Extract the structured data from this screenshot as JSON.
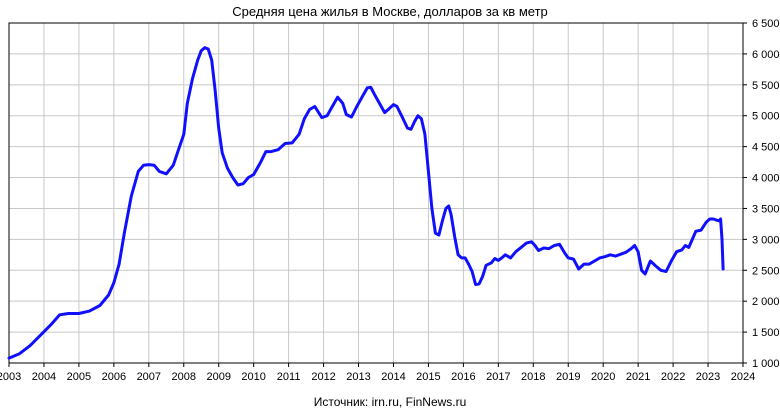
{
  "chart_data": {
    "type": "line",
    "title": "Средняя цена жилья в Москве, долларов за кв метр",
    "source": "Источник: irn.ru, FinNews.ru",
    "xlabel": "",
    "ylabel": "",
    "xlim": [
      2003,
      2024
    ],
    "ylim": [
      1000,
      6500
    ],
    "x_ticks": [
      "2003",
      "2004",
      "2005",
      "2006",
      "2007",
      "2008",
      "2009",
      "2010",
      "2011",
      "2012",
      "2013",
      "2014",
      "2015",
      "2016",
      "2017",
      "2018",
      "2019",
      "2020",
      "2021",
      "2022",
      "2023",
      "2024"
    ],
    "y_ticks": [
      "1 000",
      "1 500",
      "2 000",
      "2 500",
      "3 000",
      "3 500",
      "4 000",
      "4 500",
      "5 000",
      "5 500",
      "6 000",
      "6 500"
    ],
    "grid": true,
    "series_color": "#1010ff",
    "series": [
      {
        "name": "",
        "points": [
          [
            2003.0,
            1080
          ],
          [
            2003.3,
            1150
          ],
          [
            2003.6,
            1280
          ],
          [
            2003.9,
            1450
          ],
          [
            2004.2,
            1620
          ],
          [
            2004.45,
            1780
          ],
          [
            2004.7,
            1800
          ],
          [
            2005.0,
            1800
          ],
          [
            2005.3,
            1840
          ],
          [
            2005.6,
            1930
          ],
          [
            2005.85,
            2100
          ],
          [
            2006.0,
            2300
          ],
          [
            2006.15,
            2600
          ],
          [
            2006.3,
            3100
          ],
          [
            2006.5,
            3700
          ],
          [
            2006.7,
            4100
          ],
          [
            2006.85,
            4200
          ],
          [
            2007.0,
            4210
          ],
          [
            2007.15,
            4200
          ],
          [
            2007.3,
            4100
          ],
          [
            2007.5,
            4060
          ],
          [
            2007.7,
            4200
          ],
          [
            2007.85,
            4450
          ],
          [
            2008.0,
            4700
          ],
          [
            2008.1,
            5200
          ],
          [
            2008.25,
            5600
          ],
          [
            2008.4,
            5900
          ],
          [
            2008.5,
            6050
          ],
          [
            2008.6,
            6100
          ],
          [
            2008.7,
            6080
          ],
          [
            2008.8,
            5900
          ],
          [
            2008.9,
            5400
          ],
          [
            2009.0,
            4800
          ],
          [
            2009.1,
            4400
          ],
          [
            2009.25,
            4150
          ],
          [
            2009.4,
            4000
          ],
          [
            2009.55,
            3880
          ],
          [
            2009.7,
            3900
          ],
          [
            2009.85,
            4000
          ],
          [
            2010.0,
            4050
          ],
          [
            2010.2,
            4250
          ],
          [
            2010.35,
            4420
          ],
          [
            2010.5,
            4420
          ],
          [
            2010.7,
            4450
          ],
          [
            2010.9,
            4550
          ],
          [
            2011.1,
            4560
          ],
          [
            2011.3,
            4700
          ],
          [
            2011.45,
            4950
          ],
          [
            2011.6,
            5100
          ],
          [
            2011.75,
            5150
          ],
          [
            2011.95,
            4970
          ],
          [
            2012.1,
            5000
          ],
          [
            2012.25,
            5150
          ],
          [
            2012.4,
            5300
          ],
          [
            2012.55,
            5200
          ],
          [
            2012.65,
            5020
          ],
          [
            2012.8,
            4980
          ],
          [
            2012.95,
            5150
          ],
          [
            2013.1,
            5300
          ],
          [
            2013.25,
            5450
          ],
          [
            2013.35,
            5460
          ],
          [
            2013.45,
            5350
          ],
          [
            2013.6,
            5200
          ],
          [
            2013.75,
            5050
          ],
          [
            2013.85,
            5100
          ],
          [
            2014.0,
            5180
          ],
          [
            2014.1,
            5150
          ],
          [
            2014.25,
            4980
          ],
          [
            2014.4,
            4800
          ],
          [
            2014.5,
            4780
          ],
          [
            2014.6,
            4900
          ],
          [
            2014.7,
            5000
          ],
          [
            2014.8,
            4950
          ],
          [
            2014.9,
            4700
          ],
          [
            2015.0,
            4100
          ],
          [
            2015.1,
            3500
          ],
          [
            2015.2,
            3100
          ],
          [
            2015.3,
            3070
          ],
          [
            2015.4,
            3300
          ],
          [
            2015.5,
            3500
          ],
          [
            2015.58,
            3540
          ],
          [
            2015.65,
            3400
          ],
          [
            2015.75,
            3050
          ],
          [
            2015.85,
            2750
          ],
          [
            2015.95,
            2700
          ],
          [
            2016.05,
            2700
          ],
          [
            2016.15,
            2600
          ],
          [
            2016.25,
            2480
          ],
          [
            2016.35,
            2270
          ],
          [
            2016.45,
            2280
          ],
          [
            2016.55,
            2400
          ],
          [
            2016.65,
            2580
          ],
          [
            2016.8,
            2620
          ],
          [
            2016.9,
            2690
          ],
          [
            2017.0,
            2660
          ],
          [
            2017.1,
            2700
          ],
          [
            2017.2,
            2750
          ],
          [
            2017.35,
            2700
          ],
          [
            2017.5,
            2800
          ],
          [
            2017.65,
            2870
          ],
          [
            2017.8,
            2940
          ],
          [
            2017.95,
            2960
          ],
          [
            2018.05,
            2900
          ],
          [
            2018.15,
            2820
          ],
          [
            2018.3,
            2860
          ],
          [
            2018.45,
            2850
          ],
          [
            2018.6,
            2900
          ],
          [
            2018.75,
            2920
          ],
          [
            2018.9,
            2780
          ],
          [
            2019.0,
            2700
          ],
          [
            2019.15,
            2680
          ],
          [
            2019.3,
            2520
          ],
          [
            2019.45,
            2600
          ],
          [
            2019.6,
            2600
          ],
          [
            2019.75,
            2650
          ],
          [
            2019.9,
            2700
          ],
          [
            2020.05,
            2720
          ],
          [
            2020.2,
            2750
          ],
          [
            2020.35,
            2730
          ],
          [
            2020.5,
            2760
          ],
          [
            2020.65,
            2790
          ],
          [
            2020.8,
            2850
          ],
          [
            2020.9,
            2900
          ],
          [
            2021.0,
            2800
          ],
          [
            2021.1,
            2500
          ],
          [
            2021.2,
            2440
          ],
          [
            2021.35,
            2650
          ],
          [
            2021.5,
            2570
          ],
          [
            2021.65,
            2500
          ],
          [
            2021.8,
            2480
          ],
          [
            2021.95,
            2650
          ],
          [
            2022.1,
            2800
          ],
          [
            2022.25,
            2830
          ],
          [
            2022.35,
            2900
          ],
          [
            2022.45,
            2870
          ],
          [
            2022.55,
            3000
          ],
          [
            2022.65,
            3130
          ],
          [
            2022.8,
            3150
          ],
          [
            2022.95,
            3280
          ],
          [
            2023.05,
            3330
          ],
          [
            2023.15,
            3330
          ],
          [
            2023.25,
            3310
          ],
          [
            2023.32,
            3300
          ],
          [
            2023.36,
            3330
          ],
          [
            2023.4,
            3000
          ],
          [
            2023.43,
            2520
          ]
        ]
      }
    ]
  }
}
